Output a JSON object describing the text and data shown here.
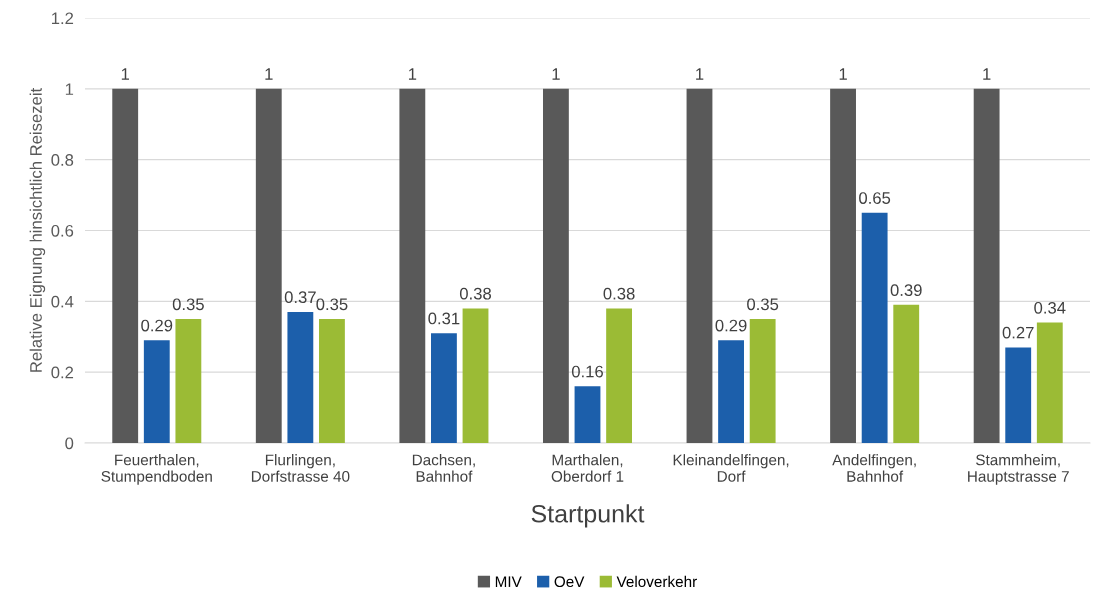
{
  "chart_data": {
    "type": "bar",
    "xlabel": "Startpunkt",
    "ylabel": "Relative Eignung hinsichtlich Reisezeit",
    "categories": [
      "Feuerthalen,\nStumpendboden",
      "Flurlingen,\nDorfstrasse 40",
      "Dachsen,\nBahnhof",
      "Marthalen,\nOberdorf 1",
      "Kleinandelfingen,\nDorf",
      "Andelfingen,\nBahnhof",
      "Stammheim,\nHauptstrasse 7"
    ],
    "series": [
      {
        "name": "MIV",
        "color": "#595959",
        "values": [
          1,
          1,
          1,
          1,
          1,
          1,
          1
        ]
      },
      {
        "name": "OeV",
        "color": "#1c5fab",
        "values": [
          0.29,
          0.37,
          0.31,
          0.16,
          0.29,
          0.65,
          0.27
        ]
      },
      {
        "name": "Veloverkehr",
        "color": "#9bbb35",
        "values": [
          0.35,
          0.35,
          0.38,
          0.38,
          0.35,
          0.39,
          0.34
        ]
      }
    ],
    "ylim": [
      0,
      1.2
    ],
    "yticks": [
      0,
      0.2,
      0.4,
      0.6,
      0.8,
      1,
      1.2
    ],
    "grid": "y",
    "legend": "bottom",
    "data_labels": true
  }
}
